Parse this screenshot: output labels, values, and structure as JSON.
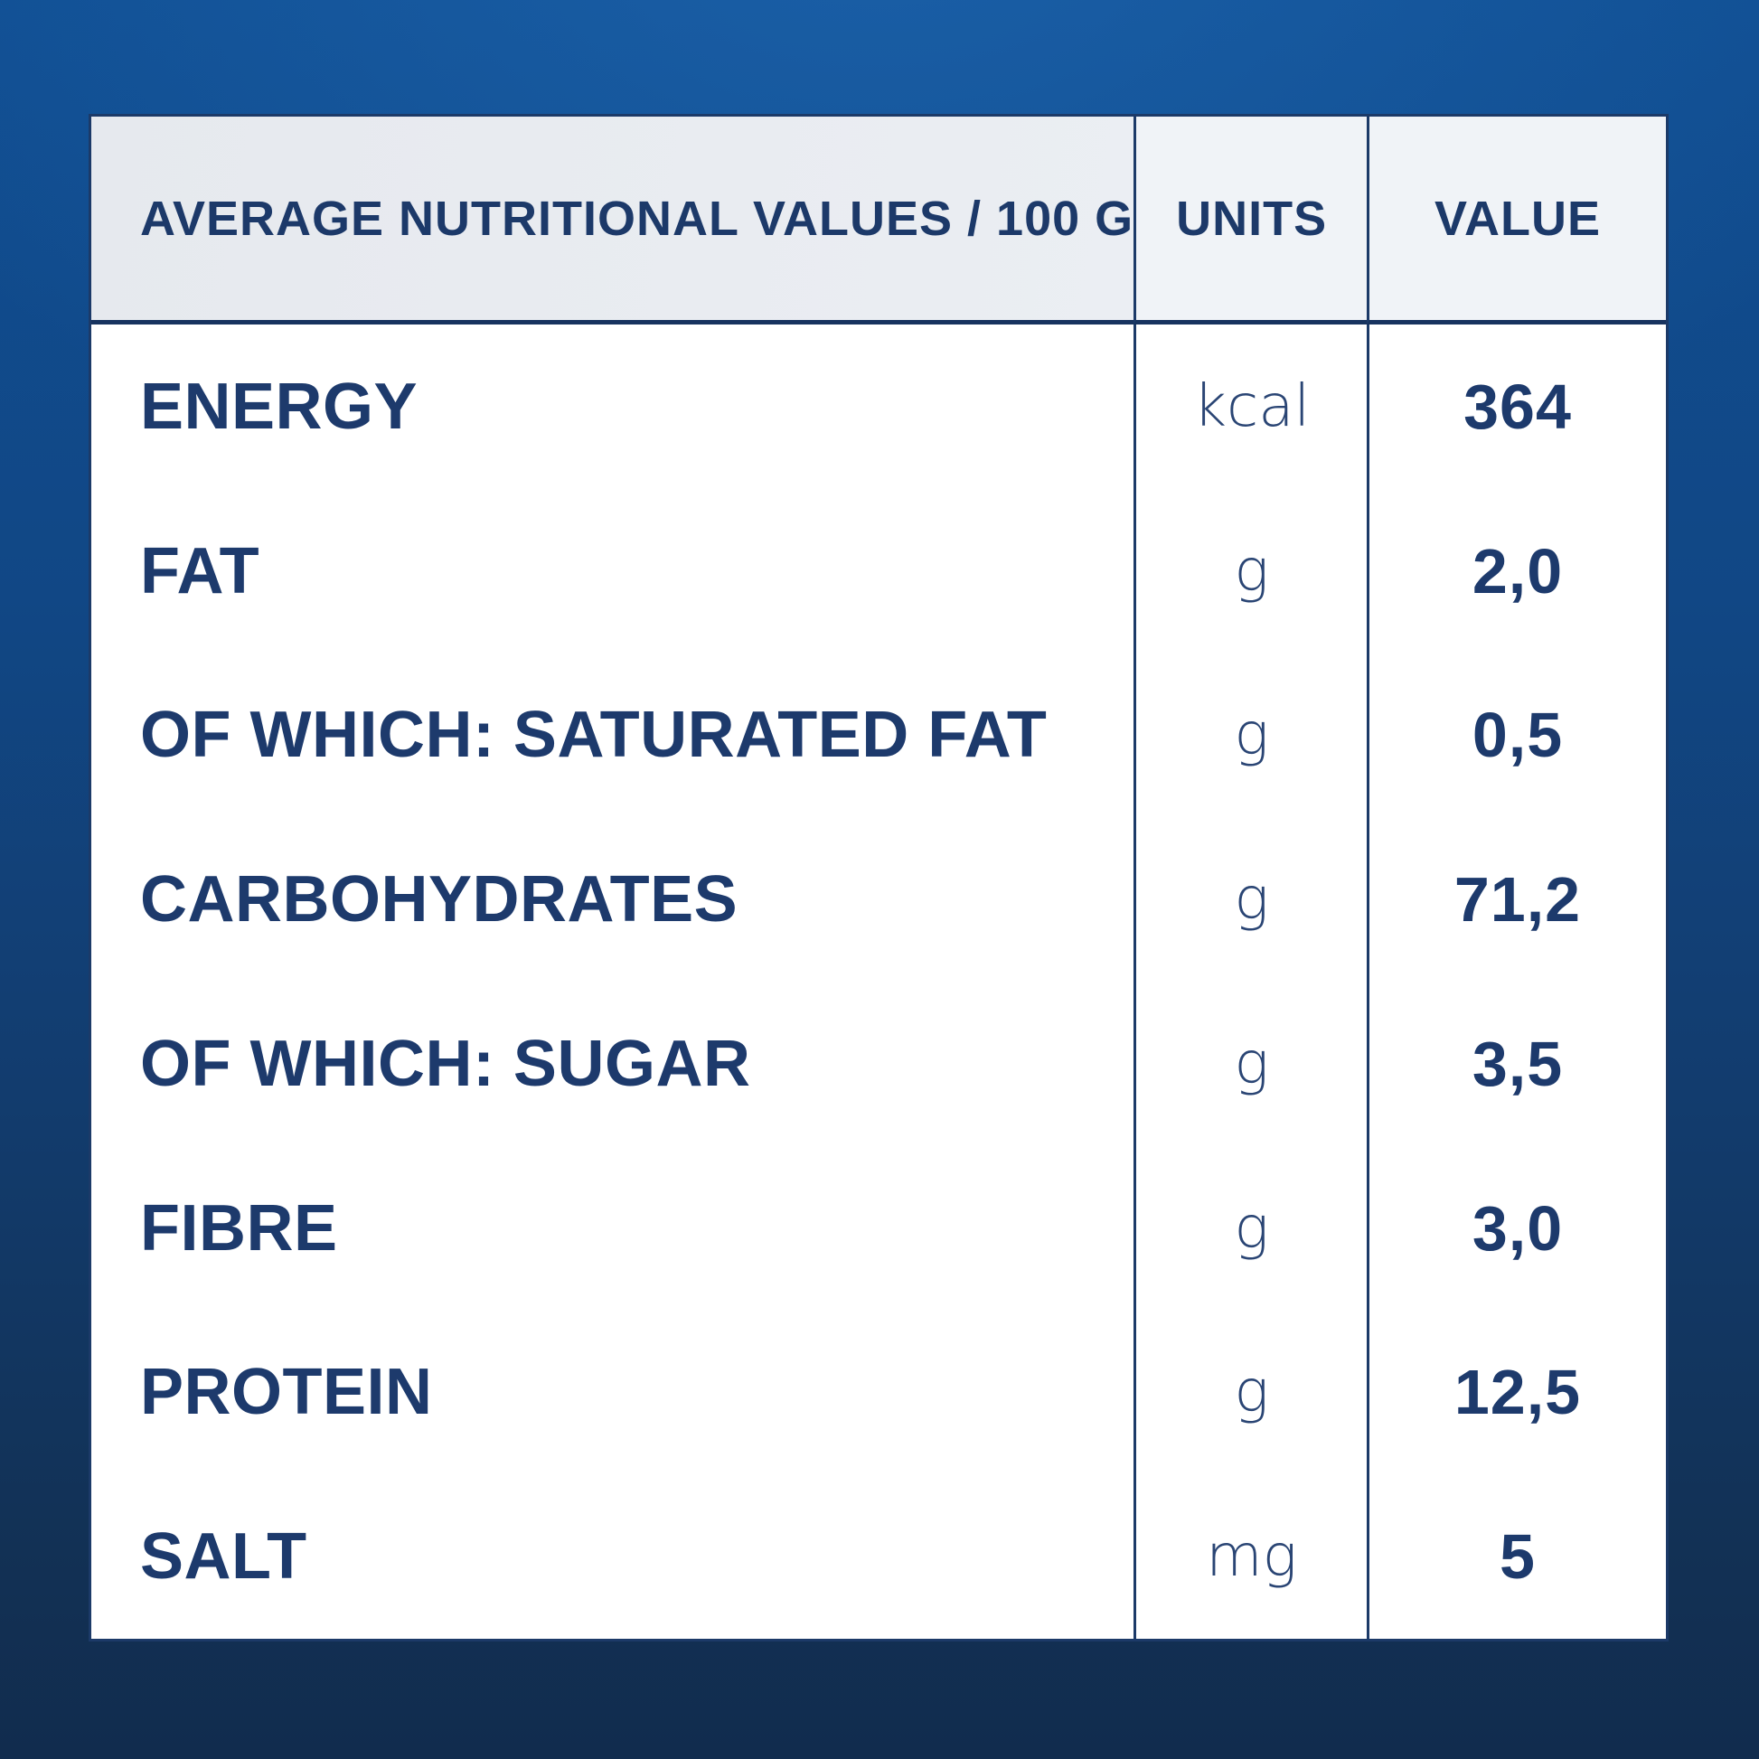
{
  "table": {
    "header": {
      "nutrient": "AVERAGE NUTRITIONAL VALUES / 100 G",
      "units": "UNITS",
      "value": "VALUE"
    },
    "rows": [
      {
        "label": "ENERGY",
        "unit": "kcal",
        "value": "364"
      },
      {
        "label": "FAT",
        "unit": "g",
        "value": "2,0"
      },
      {
        "label": "OF WHICH: SATURATED FAT",
        "unit": "g",
        "value": "0,5"
      },
      {
        "label": "CARBOHYDRATES",
        "unit": "g",
        "value": "71,2"
      },
      {
        "label": "OF WHICH: SUGAR",
        "unit": "g",
        "value": "3,5"
      },
      {
        "label": "FIBRE",
        "unit": "g",
        "value": "3,0"
      },
      {
        "label": "PROTEIN",
        "unit": "g",
        "value": "12,5"
      },
      {
        "label": "SALT",
        "unit": "mg",
        "value": "5"
      }
    ],
    "colors": {
      "background_top": "#104e92",
      "background_bottom": "#112c4e",
      "table_border": "#1c3a68",
      "header_background": "#eceff4",
      "text_navy": "#1d3a6c",
      "body_background": "#ffffff"
    }
  }
}
